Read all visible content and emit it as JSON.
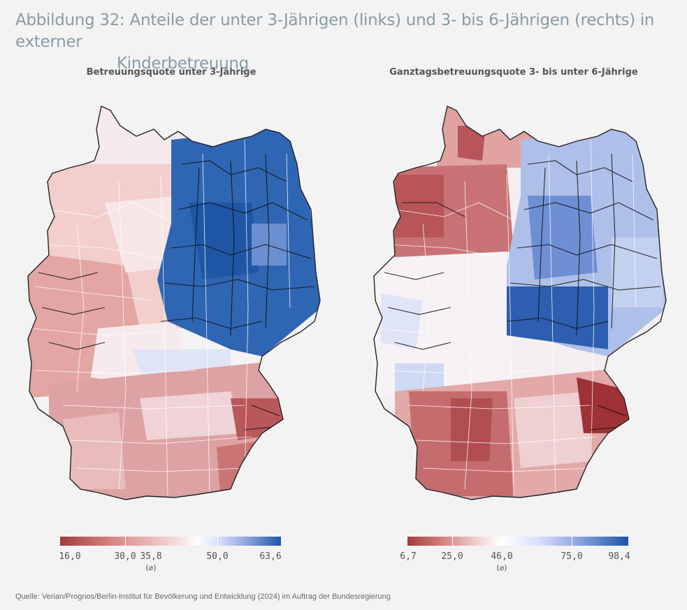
{
  "figure": {
    "title_line1": "Abbildung 32: Anteile der unter 3-Jährigen (links) und 3- bis 6-Jährigen (rechts) in externer",
    "title_line2": "Kinderbetreuung"
  },
  "maps": [
    {
      "title": "Betreuungsquote unter 3-Jährige",
      "legend": {
        "ticks": [
          "16,0",
          "30,0",
          "35,8",
          "50,0",
          "63,6"
        ],
        "avg_label": "(⌀)",
        "min_color": "#a43b3d",
        "mid_color": "#ffffff",
        "max_color": "#1d55a4"
      }
    },
    {
      "title": "Ganztagsbetreuungsquote 3- bis unter 6-Jährige",
      "legend": {
        "ticks": [
          "6,7",
          "25,0",
          "46,0",
          "75,0",
          "98,4"
        ],
        "avg_label": "(⌀)",
        "min_color": "#a43b3d",
        "mid_color": "#ffffff",
        "max_color": "#1d55a4"
      }
    }
  ],
  "source": "Quelle: Verian/Prognos/Berlin-Institut für Bevölkerung und Entwicklung (2024) im Auftrag der Bundesregierung"
}
